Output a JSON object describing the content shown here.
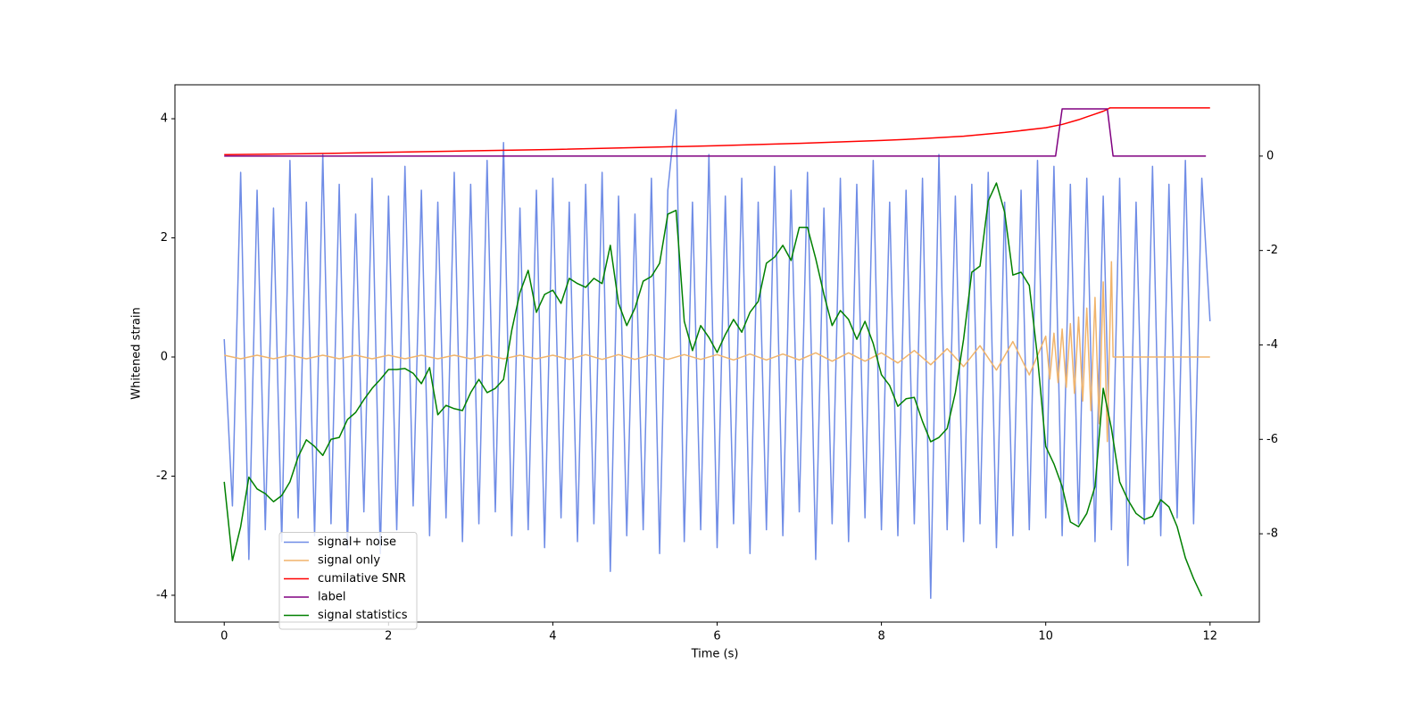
{
  "chart_data": {
    "type": "line",
    "xlabel": "Time (s)",
    "ylabel": "Whitened strain",
    "xlim": [
      -0.6,
      12.6
    ],
    "xticks": [
      0,
      2,
      4,
      6,
      8,
      10,
      12
    ],
    "ylim": [
      -4.45,
      4.57
    ],
    "yticks": [
      -4,
      -2,
      0,
      2,
      4
    ],
    "y2lim": [
      -9.87,
      1.51
    ],
    "y2ticks": [
      -8,
      -6,
      -4,
      -2,
      0
    ],
    "legend": "lower left",
    "series": [
      {
        "name": "signal+ noise",
        "color": "#6f8ce6",
        "x": [
          0,
          0.1,
          0.2,
          0.3,
          0.4,
          0.5,
          0.6,
          0.7,
          0.8,
          0.9,
          1,
          1.1,
          1.2,
          1.3,
          1.4,
          1.5,
          1.6,
          1.7,
          1.8,
          1.9,
          2,
          2.1,
          2.2,
          2.3,
          2.4,
          2.5,
          2.6,
          2.7,
          2.8,
          2.9,
          3,
          3.1,
          3.2,
          3.3,
          3.4,
          3.5,
          3.6,
          3.7,
          3.8,
          3.9,
          4,
          4.1,
          4.2,
          4.3,
          4.4,
          4.5,
          4.6,
          4.7,
          4.8,
          4.9,
          5,
          5.1,
          5.2,
          5.3,
          5.4,
          5.5,
          5.6,
          5.7,
          5.8,
          5.9,
          6,
          6.1,
          6.2,
          6.3,
          6.4,
          6.5,
          6.6,
          6.7,
          6.8,
          6.9,
          7,
          7.1,
          7.2,
          7.3,
          7.4,
          7.5,
          7.6,
          7.7,
          7.8,
          7.9,
          8,
          8.1,
          8.2,
          8.3,
          8.4,
          8.5,
          8.6,
          8.7,
          8.8,
          8.9,
          9,
          9.1,
          9.2,
          9.3,
          9.4,
          9.5,
          9.6,
          9.7,
          9.8,
          9.9,
          10,
          10.1,
          10.2,
          10.3,
          10.4,
          10.5,
          10.6,
          10.7,
          10.8,
          10.9,
          11,
          11.1,
          11.2,
          11.3,
          11.4,
          11.5,
          11.6,
          11.7,
          11.8,
          11.9,
          12
        ],
        "values": [
          0.3,
          -2.5,
          3.1,
          -3.4,
          2.8,
          -2.9,
          2.5,
          -3.1,
          3.3,
          -2.7,
          2.6,
          -3.0,
          3.4,
          -2.8,
          2.9,
          -3.2,
          2.4,
          -2.6,
          3.0,
          -3.3,
          2.7,
          -2.9,
          3.2,
          -2.5,
          2.8,
          -3.0,
          2.6,
          -2.7,
          3.1,
          -3.1,
          2.9,
          -2.8,
          3.3,
          -2.6,
          3.6,
          -3.0,
          2.5,
          -2.9,
          2.8,
          -3.2,
          3.0,
          -2.7,
          2.6,
          -3.1,
          2.9,
          -2.8,
          3.1,
          -3.6,
          2.7,
          -3.0,
          2.4,
          -2.9,
          3.0,
          -3.3,
          2.8,
          4.15,
          -3.1,
          2.6,
          -2.9,
          3.4,
          -3.2,
          2.7,
          -2.8,
          3.0,
          -3.3,
          2.6,
          -2.9,
          3.2,
          -3.0,
          2.8,
          -2.6,
          3.1,
          -3.4,
          2.5,
          -2.8,
          3.0,
          -3.1,
          2.9,
          -2.7,
          3.3,
          -2.9,
          2.6,
          -3.0,
          2.8,
          -2.8,
          3.0,
          -4.05,
          3.4,
          -2.9,
          2.7,
          -3.1,
          2.9,
          -2.8,
          3.1,
          -3.2,
          2.6,
          -3.0,
          2.8,
          -2.9,
          3.3,
          -2.7,
          3.2,
          -3.0,
          2.9,
          -2.8,
          3.0,
          -3.1,
          2.7,
          -2.9,
          3.0,
          -3.5,
          2.6,
          -2.8,
          3.2,
          -3.0,
          2.9,
          -2.7,
          3.3,
          -2.8,
          3.0,
          0.6
        ]
      },
      {
        "name": "signal only",
        "color": "#f0b46c",
        "x": [
          0,
          0.2,
          0.4,
          0.6,
          0.8,
          1,
          1.2,
          1.4,
          1.6,
          1.8,
          2,
          2.2,
          2.4,
          2.6,
          2.8,
          3,
          3.2,
          3.4,
          3.6,
          3.8,
          4,
          4.2,
          4.4,
          4.6,
          4.8,
          5,
          5.2,
          5.4,
          5.6,
          5.8,
          6,
          6.2,
          6.4,
          6.6,
          6.8,
          7,
          7.2,
          7.4,
          7.6,
          7.8,
          8,
          8.2,
          8.4,
          8.6,
          8.8,
          9,
          9.2,
          9.4,
          9.6,
          9.8,
          10,
          10.05,
          10.1,
          10.15,
          10.2,
          10.25,
          10.3,
          10.35,
          10.4,
          10.45,
          10.5,
          10.55,
          10.6,
          10.65,
          10.7,
          10.75,
          10.8,
          10.82,
          12
        ],
        "values": [
          0.03,
          -0.03,
          0.03,
          -0.03,
          0.03,
          -0.03,
          0.03,
          -0.03,
          0.03,
          -0.03,
          0.03,
          -0.03,
          0.03,
          -0.03,
          0.03,
          -0.03,
          0.03,
          -0.03,
          0.03,
          -0.03,
          0.03,
          -0.04,
          0.04,
          -0.04,
          0.04,
          -0.04,
          0.04,
          -0.04,
          0.04,
          -0.04,
          0.04,
          -0.05,
          0.05,
          -0.05,
          0.05,
          -0.05,
          0.07,
          -0.07,
          0.07,
          -0.07,
          0.07,
          -0.1,
          0.11,
          -0.13,
          0.14,
          -0.16,
          0.19,
          -0.22,
          0.26,
          -0.3,
          0.35,
          -0.37,
          0.4,
          -0.43,
          0.47,
          -0.51,
          0.56,
          -0.61,
          0.67,
          -0.74,
          0.82,
          -0.9,
          1.0,
          -1.12,
          1.26,
          -1.42,
          1.6,
          0,
          0
        ]
      },
      {
        "name": "cumilative SNR",
        "color": "#ff0000",
        "axis": "y2",
        "x": [
          0,
          1,
          2,
          3,
          4,
          5,
          6,
          7,
          8,
          8.5,
          9,
          9.5,
          10,
          10.2,
          10.4,
          10.5,
          10.6,
          10.7,
          10.75,
          10.78,
          10.8,
          12
        ],
        "values": [
          0.03,
          0.05,
          0.08,
          0.11,
          0.14,
          0.18,
          0.22,
          0.27,
          0.33,
          0.37,
          0.42,
          0.5,
          0.6,
          0.67,
          0.77,
          0.83,
          0.89,
          0.95,
          0.99,
          1.02,
          1.02,
          1.02
        ]
      },
      {
        "name": "label",
        "color": "#800080",
        "axis": "y2",
        "x": [
          0,
          10.12,
          10.2,
          10.75,
          10.82,
          11.95
        ],
        "values": [
          0,
          0,
          1,
          1,
          0,
          0
        ]
      },
      {
        "name": "signal statistics",
        "color": "#008000",
        "axis": "y2",
        "x": [
          0,
          0.1,
          0.2,
          0.3,
          0.4,
          0.5,
          0.6,
          0.7,
          0.8,
          0.9,
          1,
          1.1,
          1.2,
          1.3,
          1.4,
          1.5,
          1.6,
          1.7,
          1.8,
          1.9,
          2,
          2.1,
          2.2,
          2.3,
          2.4,
          2.5,
          2.6,
          2.7,
          2.8,
          2.9,
          3,
          3.1,
          3.2,
          3.3,
          3.4,
          3.5,
          3.6,
          3.7,
          3.8,
          3.9,
          4,
          4.1,
          4.2,
          4.3,
          4.4,
          4.5,
          4.6,
          4.7,
          4.8,
          4.9,
          5,
          5.1,
          5.2,
          5.3,
          5.4,
          5.5,
          5.6,
          5.7,
          5.8,
          5.9,
          6,
          6.1,
          6.2,
          6.3,
          6.4,
          6.5,
          6.6,
          6.7,
          6.8,
          6.9,
          7,
          7.1,
          7.2,
          7.3,
          7.4,
          7.5,
          7.6,
          7.7,
          7.8,
          7.9,
          8,
          8.1,
          8.2,
          8.3,
          8.4,
          8.5,
          8.6,
          8.7,
          8.8,
          8.9,
          9,
          9.1,
          9.2,
          9.3,
          9.4,
          9.5,
          9.6,
          9.7,
          9.8,
          9.9,
          10,
          10.1,
          10.2,
          10.3,
          10.4,
          10.5,
          10.6,
          10.7,
          10.8,
          10.9,
          11,
          11.1,
          11.2,
          11.3,
          11.4,
          11.5,
          11.6,
          11.7,
          11.8,
          11.9
        ],
        "values": [
          -6.9,
          -8.57,
          -7.85,
          -6.8,
          -7.05,
          -7.15,
          -7.32,
          -7.19,
          -6.9,
          -6.37,
          -6.01,
          -6.15,
          -6.34,
          -6.0,
          -5.96,
          -5.58,
          -5.43,
          -5.16,
          -4.92,
          -4.73,
          -4.52,
          -4.52,
          -4.5,
          -4.6,
          -4.82,
          -4.48,
          -5.48,
          -5.28,
          -5.35,
          -5.39,
          -5.01,
          -4.73,
          -5.01,
          -4.92,
          -4.73,
          -3.69,
          -2.89,
          -2.42,
          -3.31,
          -2.93,
          -2.84,
          -3.12,
          -2.59,
          -2.7,
          -2.78,
          -2.59,
          -2.7,
          -1.89,
          -3.12,
          -3.59,
          -3.22,
          -2.65,
          -2.55,
          -2.27,
          -1.23,
          -1.15,
          -3.5,
          -4.12,
          -3.59,
          -3.84,
          -4.16,
          -3.78,
          -3.46,
          -3.73,
          -3.31,
          -3.08,
          -2.27,
          -2.14,
          -1.89,
          -2.21,
          -1.51,
          -1.51,
          -2.17,
          -2.93,
          -3.59,
          -3.27,
          -3.46,
          -3.88,
          -3.5,
          -3.97,
          -4.63,
          -4.86,
          -5.3,
          -5.14,
          -5.11,
          -5.62,
          -6.05,
          -5.96,
          -5.77,
          -5.01,
          -3.88,
          -2.46,
          -2.33,
          -0.95,
          -0.57,
          -1.19,
          -2.52,
          -2.46,
          -2.74,
          -4.26,
          -6.15,
          -6.52,
          -7.0,
          -7.75,
          -7.85,
          -7.57,
          -7.0,
          -4.92,
          -5.77,
          -6.9,
          -7.28,
          -7.57,
          -7.7,
          -7.63,
          -7.28,
          -7.43,
          -7.85,
          -8.51,
          -8.95,
          -9.32
        ]
      }
    ]
  }
}
